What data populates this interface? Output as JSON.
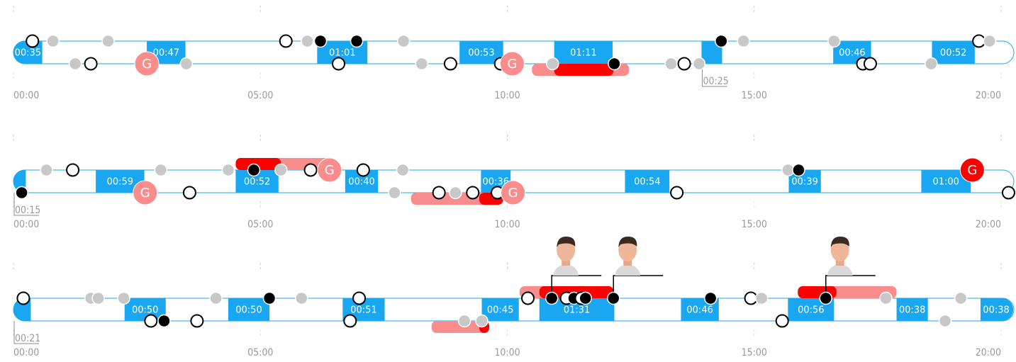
{
  "chart_data": {
    "type": "timeline",
    "xlim": [
      0,
      1200
    ],
    "xticks": [
      {
        "value": 0,
        "label": "00:00"
      },
      {
        "value": 300,
        "label": "05:00"
      },
      {
        "value": 600,
        "label": "10:00"
      },
      {
        "value": 900,
        "label": "15:00"
      },
      {
        "value": 1200,
        "label": "20:00"
      }
    ],
    "rows": [
      {
        "shifts": [
          {
            "start": 0,
            "duration": 35,
            "label": "00:35"
          },
          {
            "start": 162,
            "duration": 47,
            "label": "00:47"
          },
          {
            "start": 369,
            "duration": 61,
            "label": "01:01"
          },
          {
            "start": 542,
            "duration": 53,
            "label": "00:53"
          },
          {
            "start": 657,
            "duration": 71,
            "label": "01:11"
          },
          {
            "start": 836,
            "duration": 25,
            "label": "00:25",
            "label_below": true
          },
          {
            "start": 996,
            "duration": 46,
            "label": "00:46"
          },
          {
            "start": 1116,
            "duration": 52,
            "label": "00:52"
          }
        ],
        "penalties": [
          {
            "start": 630,
            "end": 748,
            "side": "bottom",
            "color": "#f98c8c"
          },
          {
            "start": 657,
            "end": 729,
            "side": "bottom",
            "color": "#ff0000"
          }
        ],
        "goals": [
          {
            "t": 162,
            "side": "bottom",
            "label": "G",
            "color": "#f98c8c"
          },
          {
            "t": 606,
            "side": "bottom",
            "label": "G",
            "color": "#f98c8c"
          }
        ],
        "events": [
          {
            "t": 23,
            "side": "top",
            "kind": "open"
          },
          {
            "t": 48,
            "side": "top",
            "kind": "gray"
          },
          {
            "t": 115,
            "side": "top",
            "kind": "gray"
          },
          {
            "t": 331,
            "side": "top",
            "kind": "open"
          },
          {
            "t": 357,
            "side": "top",
            "kind": "gray"
          },
          {
            "t": 373,
            "side": "top",
            "kind": "black"
          },
          {
            "t": 417,
            "side": "top",
            "kind": "black"
          },
          {
            "t": 474,
            "side": "top",
            "kind": "gray"
          },
          {
            "t": 860,
            "side": "top",
            "kind": "black"
          },
          {
            "t": 887,
            "side": "top",
            "kind": "gray"
          },
          {
            "t": 997,
            "side": "top",
            "kind": "gray"
          },
          {
            "t": 1173,
            "side": "top",
            "kind": "open"
          },
          {
            "t": 1186,
            "side": "top",
            "kind": "gray"
          },
          {
            "t": 75,
            "side": "bottom",
            "kind": "gray"
          },
          {
            "t": 94,
            "side": "bottom",
            "kind": "open"
          },
          {
            "t": 210,
            "side": "bottom",
            "kind": "gray"
          },
          {
            "t": 395,
            "side": "bottom",
            "kind": "open"
          },
          {
            "t": 496,
            "side": "bottom",
            "kind": "gray"
          },
          {
            "t": 531,
            "side": "bottom",
            "kind": "open"
          },
          {
            "t": 592,
            "side": "bottom",
            "kind": "open"
          },
          {
            "t": 655,
            "side": "bottom",
            "kind": "gray"
          },
          {
            "t": 730,
            "side": "bottom",
            "kind": "black"
          },
          {
            "t": 799,
            "side": "bottom",
            "kind": "gray"
          },
          {
            "t": 815,
            "side": "bottom",
            "kind": "open"
          },
          {
            "t": 833,
            "side": "bottom",
            "kind": "gray"
          },
          {
            "t": 1032,
            "side": "bottom",
            "kind": "open"
          },
          {
            "t": 1041,
            "side": "bottom",
            "kind": "open"
          },
          {
            "t": 1115,
            "side": "bottom",
            "kind": "gray"
          }
        ],
        "faces": []
      },
      {
        "shifts": [
          {
            "start": 0,
            "duration": 15,
            "label": "00:15",
            "label_below": true
          },
          {
            "start": 100,
            "duration": 59,
            "label": "00:59"
          },
          {
            "start": 270,
            "duration": 52,
            "label": "00:52"
          },
          {
            "start": 403,
            "duration": 40,
            "label": "00:40"
          },
          {
            "start": 568,
            "duration": 36,
            "label": "00:36"
          },
          {
            "start": 743,
            "duration": 54,
            "label": "00:54"
          },
          {
            "start": 942,
            "duration": 39,
            "label": "00:39"
          },
          {
            "start": 1103,
            "duration": 60,
            "label": "01:00"
          }
        ],
        "penalties": [
          {
            "start": 270,
            "end": 388,
            "side": "top",
            "color": "#f98c8c"
          },
          {
            "start": 270,
            "end": 325,
            "side": "top",
            "color": "#ff0000"
          },
          {
            "start": 483,
            "end": 595,
            "side": "bottom",
            "color": "#f98c8c"
          },
          {
            "start": 566,
            "end": 595,
            "side": "bottom",
            "color": "#ff0000"
          }
        ],
        "goals": [
          {
            "t": 384,
            "side": "top",
            "label": "G",
            "color": "#f98c8c"
          },
          {
            "t": 1165,
            "side": "top",
            "label": "G",
            "color": "#ff0000"
          },
          {
            "t": 160,
            "side": "bottom",
            "label": "G",
            "color": "#f98c8c"
          },
          {
            "t": 607,
            "side": "bottom",
            "label": "G",
            "color": "#f98c8c"
          }
        ],
        "events": [
          {
            "t": 40,
            "side": "top",
            "kind": "gray"
          },
          {
            "t": 72,
            "side": "top",
            "kind": "open"
          },
          {
            "t": 179,
            "side": "top",
            "kind": "gray"
          },
          {
            "t": 261,
            "side": "top",
            "kind": "gray"
          },
          {
            "t": 292,
            "side": "top",
            "kind": "black"
          },
          {
            "t": 325,
            "side": "top",
            "kind": "gray"
          },
          {
            "t": 361,
            "side": "top",
            "kind": "open"
          },
          {
            "t": 425,
            "side": "top",
            "kind": "open"
          },
          {
            "t": 473,
            "side": "top",
            "kind": "gray"
          },
          {
            "t": 941,
            "side": "top",
            "kind": "gray"
          },
          {
            "t": 954,
            "side": "top",
            "kind": "black"
          },
          {
            "t": 10,
            "side": "bottom",
            "kind": "black"
          },
          {
            "t": 214,
            "side": "bottom",
            "kind": "open"
          },
          {
            "t": 463,
            "side": "bottom",
            "kind": "gray"
          },
          {
            "t": 517,
            "side": "bottom",
            "kind": "open"
          },
          {
            "t": 537,
            "side": "bottom",
            "kind": "gray"
          },
          {
            "t": 558,
            "side": "bottom",
            "kind": "open"
          },
          {
            "t": 588,
            "side": "bottom",
            "kind": "open"
          },
          {
            "t": 806,
            "side": "bottom",
            "kind": "open"
          },
          {
            "t": 1209,
            "side": "bottom",
            "kind": "open"
          }
        ],
        "faces": []
      },
      {
        "shifts": [
          {
            "start": 0,
            "duration": 21,
            "label": "00:21",
            "label_below": true
          },
          {
            "start": 135,
            "duration": 50,
            "label": "00:50"
          },
          {
            "start": 261,
            "duration": 50,
            "label": "00:50"
          },
          {
            "start": 400,
            "duration": 51,
            "label": "00:51"
          },
          {
            "start": 569,
            "duration": 45,
            "label": "00:45"
          },
          {
            "start": 639,
            "duration": 91,
            "label": "01:31"
          },
          {
            "start": 811,
            "duration": 46,
            "label": "00:46"
          },
          {
            "start": 941,
            "duration": 56,
            "label": "00:56"
          },
          {
            "start": 1073,
            "duration": 38,
            "label": "00:38"
          },
          {
            "start": 1175,
            "duration": 38,
            "label": "00:38"
          }
        ],
        "penalties": [
          {
            "start": 615,
            "end": 729,
            "side": "top",
            "color": "#f98c8c"
          },
          {
            "start": 639,
            "end": 729,
            "side": "top",
            "color": "#ff0000"
          },
          {
            "start": 508,
            "end": 578,
            "side": "bottom",
            "color": "#f98c8c"
          },
          {
            "start": 566,
            "end": 578,
            "side": "bottom",
            "color": "#ff0000"
          },
          {
            "start": 953,
            "end": 1073,
            "side": "top",
            "color": "#f98c8c"
          },
          {
            "start": 953,
            "end": 1000,
            "side": "top",
            "color": "#ff0000"
          }
        ],
        "goals": [],
        "events": [
          {
            "t": 12,
            "side": "top",
            "kind": "open"
          },
          {
            "t": 94,
            "side": "top",
            "kind": "gray"
          },
          {
            "t": 103,
            "side": "top",
            "kind": "gray"
          },
          {
            "t": 134,
            "side": "top",
            "kind": "gray"
          },
          {
            "t": 246,
            "side": "top",
            "kind": "gray"
          },
          {
            "t": 311,
            "side": "top",
            "kind": "black"
          },
          {
            "t": 350,
            "side": "top",
            "kind": "gray"
          },
          {
            "t": 420,
            "side": "top",
            "kind": "open"
          },
          {
            "t": 625,
            "side": "top",
            "kind": "open"
          },
          {
            "t": 654,
            "side": "top",
            "kind": "black"
          },
          {
            "t": 672,
            "side": "top",
            "kind": "open"
          },
          {
            "t": 681,
            "side": "top",
            "kind": "black"
          },
          {
            "t": 690,
            "side": "top",
            "kind": "open"
          },
          {
            "t": 695,
            "side": "top",
            "kind": "black"
          },
          {
            "t": 729,
            "side": "top",
            "kind": "black"
          },
          {
            "t": 847,
            "side": "top",
            "kind": "black"
          },
          {
            "t": 896,
            "side": "top",
            "kind": "open"
          },
          {
            "t": 909,
            "side": "top",
            "kind": "gray"
          },
          {
            "t": 987,
            "side": "top",
            "kind": "black"
          },
          {
            "t": 1060,
            "side": "top",
            "kind": "gray"
          },
          {
            "t": 1151,
            "side": "top",
            "kind": "gray"
          },
          {
            "t": 167,
            "side": "bottom",
            "kind": "open"
          },
          {
            "t": 183,
            "side": "bottom",
            "kind": "black"
          },
          {
            "t": 223,
            "side": "bottom",
            "kind": "open"
          },
          {
            "t": 409,
            "side": "bottom",
            "kind": "open"
          },
          {
            "t": 548,
            "side": "bottom",
            "kind": "gray"
          },
          {
            "t": 569,
            "side": "bottom",
            "kind": "gray"
          },
          {
            "t": 934,
            "side": "bottom",
            "kind": "open"
          },
          {
            "t": 1132,
            "side": "bottom",
            "kind": "gray"
          }
        ],
        "faces": [
          {
            "t": 654
          },
          {
            "t": 729
          },
          {
            "t": 987
          }
        ]
      }
    ]
  }
}
